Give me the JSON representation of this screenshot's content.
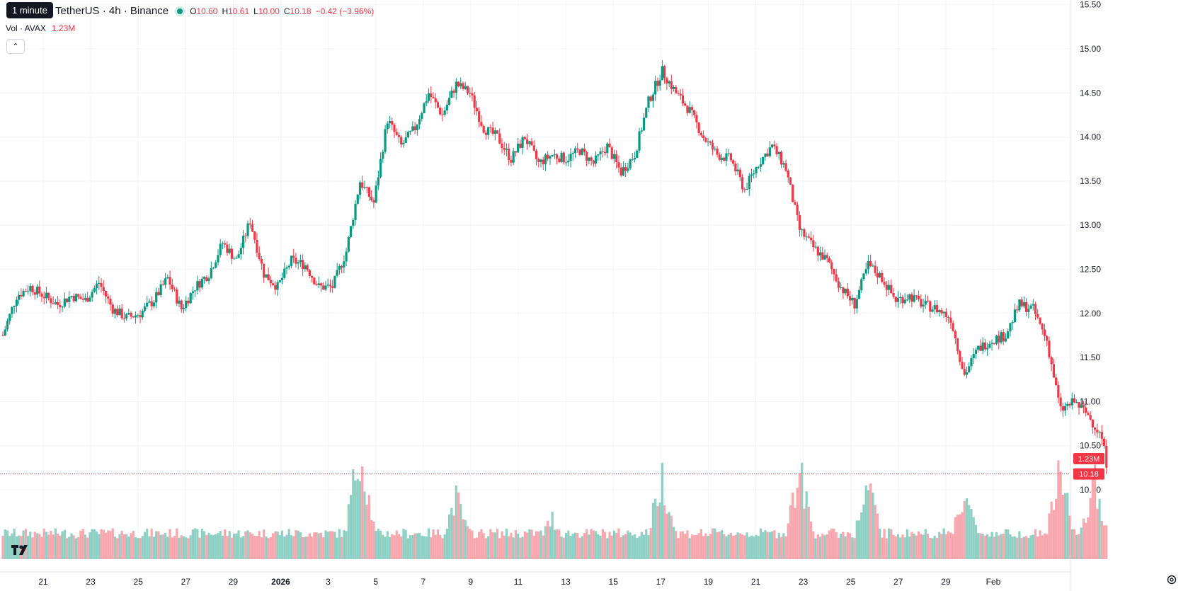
{
  "tooltip": "1 minute",
  "header": {
    "symbol_title": "TetherUS · 4h · Binance",
    "ohlc": {
      "o_label": "O",
      "o": "10.60",
      "h_label": "H",
      "h": "10.61",
      "l_label": "L",
      "l": "10.00",
      "c_label": "C",
      "c": "10.18",
      "change": "−0.42 (−3.96%)"
    },
    "volume_label": "Vol · AVAX",
    "volume_value": "1.23M"
  },
  "price_badges": {
    "volume": "1.23M",
    "last": "10.18"
  },
  "colors": {
    "up": "#089981",
    "down": "#f23645",
    "vol_up": "#8fd0c5",
    "vol_down": "#f7a7ad",
    "grid": "#f0f3fa"
  },
  "chart_data": {
    "type": "candlestick",
    "interval": "4h",
    "y_ticks": [
      "15.50",
      "15.00",
      "14.50",
      "14.00",
      "13.50",
      "13.00",
      "12.50",
      "12.00",
      "11.50",
      "11.00",
      "10.50",
      "10.00"
    ],
    "ylim": [
      9.5,
      15.55
    ],
    "x_ticks": [
      "21",
      "23",
      "25",
      "27",
      "29",
      "2026",
      "3",
      "5",
      "7",
      "9",
      "11",
      "13",
      "15",
      "17",
      "19",
      "21",
      "23",
      "25",
      "27",
      "29",
      "Feb"
    ],
    "close_path": [
      {
        "d": 0,
        "v": 11.75
      },
      {
        "d": 1,
        "v": 12.2
      },
      {
        "d": 2,
        "v": 12.3
      },
      {
        "d": 3,
        "v": 12.2
      },
      {
        "d": 4,
        "v": 12.1
      },
      {
        "d": 5,
        "v": 12.2
      },
      {
        "d": 6,
        "v": 12.15
      },
      {
        "d": 7,
        "v": 12.35
      },
      {
        "d": 8,
        "v": 12.05
      },
      {
        "d": 9,
        "v": 11.95
      },
      {
        "d": 10,
        "v": 12.0
      },
      {
        "d": 11,
        "v": 12.15
      },
      {
        "d": 12,
        "v": 12.4
      },
      {
        "d": 13,
        "v": 12.05
      },
      {
        "d": 14,
        "v": 12.3
      },
      {
        "d": 15,
        "v": 12.45
      },
      {
        "d": 16,
        "v": 12.8
      },
      {
        "d": 17,
        "v": 12.6
      },
      {
        "d": 18,
        "v": 13.05
      },
      {
        "d": 19,
        "v": 12.45
      },
      {
        "d": 20,
        "v": 12.3
      },
      {
        "d": 21,
        "v": 12.6
      },
      {
        "d": 22,
        "v": 12.55
      },
      {
        "d": 23,
        "v": 12.3
      },
      {
        "d": 24,
        "v": 12.3
      },
      {
        "d": 25,
        "v": 12.7
      },
      {
        "d": 26,
        "v": 13.5
      },
      {
        "d": 27,
        "v": 13.25
      },
      {
        "d": 28,
        "v": 14.2
      },
      {
        "d": 29,
        "v": 13.9
      },
      {
        "d": 30,
        "v": 14.1
      },
      {
        "d": 31,
        "v": 14.5
      },
      {
        "d": 32,
        "v": 14.25
      },
      {
        "d": 33,
        "v": 14.6
      },
      {
        "d": 34,
        "v": 14.5
      },
      {
        "d": 35,
        "v": 14.1
      },
      {
        "d": 36,
        "v": 14.0
      },
      {
        "d": 37,
        "v": 13.75
      },
      {
        "d": 38,
        "v": 14.0
      },
      {
        "d": 39,
        "v": 13.7
      },
      {
        "d": 40,
        "v": 13.8
      },
      {
        "d": 41,
        "v": 13.75
      },
      {
        "d": 42,
        "v": 13.85
      },
      {
        "d": 43,
        "v": 13.7
      },
      {
        "d": 44,
        "v": 13.9
      },
      {
        "d": 45,
        "v": 13.6
      },
      {
        "d": 46,
        "v": 13.8
      },
      {
        "d": 47,
        "v": 14.4
      },
      {
        "d": 48,
        "v": 14.75
      },
      {
        "d": 49,
        "v": 14.5
      },
      {
        "d": 50,
        "v": 14.3
      },
      {
        "d": 51,
        "v": 14.0
      },
      {
        "d": 52,
        "v": 13.8
      },
      {
        "d": 53,
        "v": 13.75
      },
      {
        "d": 54,
        "v": 13.4
      },
      {
        "d": 55,
        "v": 13.7
      },
      {
        "d": 56,
        "v": 13.9
      },
      {
        "d": 57,
        "v": 13.65
      },
      {
        "d": 58,
        "v": 12.95
      },
      {
        "d": 59,
        "v": 12.75
      },
      {
        "d": 60,
        "v": 12.6
      },
      {
        "d": 61,
        "v": 12.3
      },
      {
        "d": 62,
        "v": 12.1
      },
      {
        "d": 63,
        "v": 12.55
      },
      {
        "d": 64,
        "v": 12.4
      },
      {
        "d": 65,
        "v": 12.15
      },
      {
        "d": 66,
        "v": 12.2
      },
      {
        "d": 67,
        "v": 12.1
      },
      {
        "d": 68,
        "v": 12.05
      },
      {
        "d": 69,
        "v": 11.95
      },
      {
        "d": 70,
        "v": 11.3
      },
      {
        "d": 71,
        "v": 11.6
      },
      {
        "d": 72,
        "v": 11.7
      },
      {
        "d": 73,
        "v": 11.75
      },
      {
        "d": 74,
        "v": 12.1
      },
      {
        "d": 75,
        "v": 12.05
      },
      {
        "d": 76,
        "v": 11.7
      },
      {
        "d": 77,
        "v": 10.9
      },
      {
        "d": 78,
        "v": 11.0
      },
      {
        "d": 79,
        "v": 10.85
      },
      {
        "d": 80,
        "v": 10.6
      },
      {
        "d": 80.5,
        "v": 10.18
      }
    ],
    "volume_profile": [
      {
        "d": 26,
        "v": 1.0
      },
      {
        "d": 33,
        "v": 0.5
      },
      {
        "d": 40,
        "v": 0.3
      },
      {
        "d": 48,
        "v": 0.7
      },
      {
        "d": 58,
        "v": 0.75
      },
      {
        "d": 63,
        "v": 0.6
      },
      {
        "d": 70,
        "v": 0.55
      },
      {
        "d": 77,
        "v": 0.75
      },
      {
        "d": 79.5,
        "v": 0.65
      }
    ]
  }
}
